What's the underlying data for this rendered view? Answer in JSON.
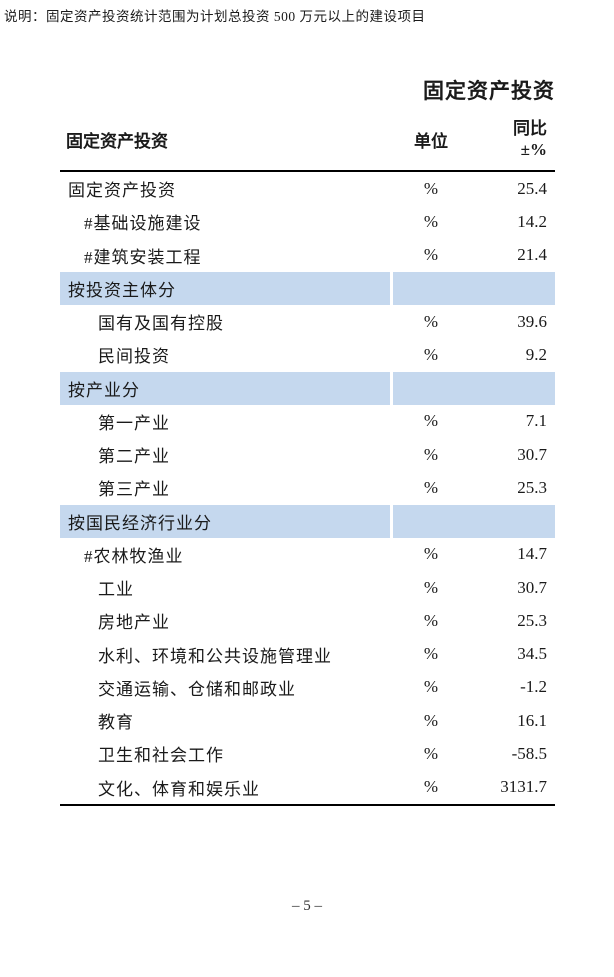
{
  "page": {
    "title": "固定资产投资",
    "footnote": "说明：固定资产投资统计范围为计划总投资 500 万元以上的建设项目",
    "page_number": "– 5 –"
  },
  "colors": {
    "section_band_bg": "#C5D8EE",
    "text": "#1A1A1A",
    "rule_line": "#000000"
  },
  "table": {
    "header": {
      "col_label": "固定资产投资",
      "col_unit": "单位",
      "col_yoy_line1": "同比",
      "col_yoy_line2": "±%"
    },
    "rows": [
      {
        "type": "data",
        "indent": 0,
        "label": "固定资产投资",
        "unit": "%",
        "value": "25.4"
      },
      {
        "type": "data",
        "indent": 1,
        "label": "#基础设施建设",
        "unit": "%",
        "value": "14.2"
      },
      {
        "type": "data",
        "indent": 1,
        "label": "#建筑安装工程",
        "unit": "%",
        "value": "21.4"
      },
      {
        "type": "section",
        "label": "按投资主体分"
      },
      {
        "type": "data",
        "indent": 2,
        "label": "国有及国有控股",
        "unit": "%",
        "value": "39.6"
      },
      {
        "type": "data",
        "indent": 2,
        "label": "民间投资",
        "unit": "%",
        "value": "9.2"
      },
      {
        "type": "section",
        "label": "按产业分"
      },
      {
        "type": "data",
        "indent": 2,
        "label": "第一产业",
        "unit": "%",
        "value": "7.1"
      },
      {
        "type": "data",
        "indent": 2,
        "label": "第二产业",
        "unit": "%",
        "value": "30.7"
      },
      {
        "type": "data",
        "indent": 2,
        "label": "第三产业",
        "unit": "%",
        "value": "25.3"
      },
      {
        "type": "section",
        "label": "按国民经济行业分"
      },
      {
        "type": "data",
        "indent": 1,
        "label": "#农林牧渔业",
        "unit": "%",
        "value": "14.7"
      },
      {
        "type": "data",
        "indent": 2,
        "label": "工业",
        "unit": "%",
        "value": "30.7"
      },
      {
        "type": "data",
        "indent": 2,
        "label": "房地产业",
        "unit": "%",
        "value": "25.3"
      },
      {
        "type": "data",
        "indent": 2,
        "label": "水利、环境和公共设施管理业",
        "unit": "%",
        "value": "34.5"
      },
      {
        "type": "data",
        "indent": 2,
        "label": "交通运输、仓储和邮政业",
        "unit": "%",
        "value": "-1.2"
      },
      {
        "type": "data",
        "indent": 2,
        "label": "教育",
        "unit": "%",
        "value": "16.1"
      },
      {
        "type": "data",
        "indent": 2,
        "label": "卫生和社会工作",
        "unit": "%",
        "value": "-58.5"
      },
      {
        "type": "data",
        "indent": 2,
        "label": "文化、体育和娱乐业",
        "unit": "%",
        "value": "3131.7"
      }
    ]
  }
}
